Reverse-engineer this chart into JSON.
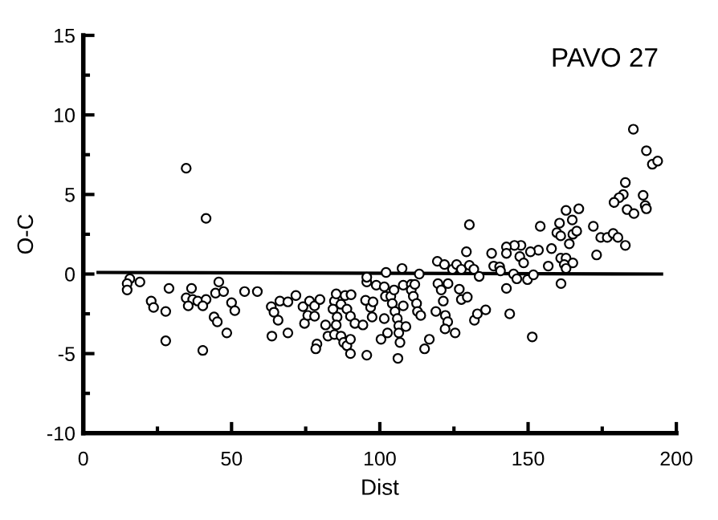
{
  "chart_data": {
    "type": "scatter",
    "title": "PAVO 27",
    "xlabel": "Dist",
    "ylabel": "O-C",
    "xlim": [
      0,
      200
    ],
    "ylim": [
      -10,
      15
    ],
    "xticks": [
      0,
      50,
      100,
      150,
      200
    ],
    "yticks": [
      -10,
      -5,
      0,
      5,
      10,
      15
    ],
    "grid": false,
    "legend": false,
    "series": [
      {
        "marker": "circle",
        "color": "#000000",
        "x": [
          34.7,
          41.4,
          15.7,
          14.8,
          14.8,
          19.1,
          28.9,
          22.9,
          23.7,
          27.8,
          27.8,
          36.5,
          34.7,
          36.9,
          35.4,
          38.6,
          41.4,
          40.3,
          40.3,
          44.1,
          45.2,
          45.7,
          44.6,
          47.3,
          48.4,
          50.0,
          51.1,
          54.4,
          58.7,
          63.4,
          64.3,
          65.7,
          63.6,
          69.0,
          66.3,
          69.0,
          71.7,
          74.1,
          74.6,
          76.3,
          75.7,
          78.0,
          78.0,
          79.8,
          78.8,
          78.4,
          81.7,
          82.5,
          84.7,
          85.3,
          84.2,
          85.6,
          85.3,
          84.7,
          86.9,
          87.8,
          88.9,
          90.1,
          90.1,
          86.9,
          88.3,
          90.3,
          88.9,
          90.1,
          91.6,
          94.3,
          95.6,
          95.2,
          95.6,
          95.6,
          96.9,
          97.4,
          97.7,
          98.8,
          101.5,
          102.1,
          101.5,
          100.4,
          102.6,
          101.9,
          103.7,
          104.8,
          104.2,
          105.1,
          105.9,
          106.4,
          106.4,
          106.8,
          106.1,
          107.5,
          107.9,
          107.9,
          108.8,
          110.6,
          110.6,
          111.8,
          111.3,
          112.4,
          112.7,
          113.8,
          113.3,
          116.7,
          115.1,
          119.4,
          119.6,
          118.9,
          121.8,
          120.7,
          121.4,
          122.1,
          122.9,
          122.0,
          125.4,
          124.5,
          125.9,
          123.0,
          126.8,
          127.5,
          129.5,
          127.5,
          130.2,
          129.2,
          130.2,
          131.7,
          131.9,
          132.9,
          185.5,
          189.9,
          191.9,
          193.7,
          182.8,
          182.1,
          180.7,
          179.0,
          188.8,
          189.5,
          189.9,
          183.4,
          185.7,
          172.0,
          174.5,
          176.7,
          178.7,
          180.3,
          182.8,
          173.1,
          162.8,
          167.1,
          164.9,
          160.6,
          154.1,
          159.7,
          161.0,
          165.1,
          166.4,
          163.9,
          157.9,
          153.5,
          150.8,
          147.6,
          145.4,
          142.7,
          142.7,
          137.7,
          147.2,
          148.5,
          138.4,
          140.4,
          140.7,
          145.1,
          146.2,
          149.8,
          151.8,
          156.8,
          161.0,
          162.8,
          162.2,
          165.1,
          162.8,
          161.1,
          142.7,
          133.5,
          135.7,
          143.8,
          151.4
        ],
        "values": [
          6.65,
          3.5,
          -0.3,
          -0.6,
          -1.0,
          -0.5,
          -0.9,
          -1.7,
          -2.1,
          -2.35,
          -4.2,
          -0.9,
          -1.5,
          -1.6,
          -2.0,
          -1.7,
          -1.6,
          -2.0,
          -4.8,
          -2.7,
          -3.0,
          -0.5,
          -1.2,
          -1.1,
          -3.7,
          -1.8,
          -2.3,
          -1.1,
          -1.1,
          -2.05,
          -2.4,
          -2.9,
          -3.9,
          -3.7,
          -1.7,
          -1.75,
          -1.35,
          -2.05,
          -3.1,
          -1.7,
          -2.6,
          -2.0,
          -2.65,
          -1.6,
          -4.4,
          -4.7,
          -3.2,
          -3.9,
          -1.7,
          -1.25,
          -2.2,
          -2.7,
          -3.2,
          -3.8,
          -3.9,
          -4.3,
          -4.5,
          -5.0,
          -4.1,
          -1.9,
          -1.35,
          -1.3,
          -2.2,
          -2.65,
          -3.1,
          -3.2,
          -5.1,
          -1.65,
          -0.5,
          -0.2,
          -2.1,
          -2.7,
          -1.75,
          -0.7,
          -0.8,
          0.1,
          -2.8,
          -4.1,
          -3.7,
          -1.4,
          -1.4,
          -1.0,
          -1.85,
          -2.35,
          -2.8,
          -3.25,
          -3.7,
          -4.3,
          -5.3,
          0.35,
          -0.7,
          -2.0,
          -3.3,
          -0.65,
          -1.0,
          -0.65,
          -1.4,
          -1.85,
          -2.35,
          -2.6,
          0.0,
          -4.1,
          -4.7,
          0.8,
          -0.6,
          -2.35,
          0.6,
          -1.0,
          -1.7,
          -2.6,
          -3.0,
          -3.45,
          -3.7,
          0.3,
          0.6,
          -0.6,
          -0.95,
          -1.6,
          -1.45,
          0.3,
          3.1,
          1.4,
          0.55,
          0.3,
          -2.9,
          -2.5,
          9.1,
          7.75,
          6.9,
          7.1,
          5.75,
          5.0,
          4.8,
          4.5,
          4.95,
          4.3,
          4.1,
          4.05,
          3.8,
          3.0,
          2.3,
          2.3,
          2.55,
          2.3,
          1.8,
          1.2,
          4.0,
          4.1,
          3.4,
          3.2,
          3.0,
          2.6,
          2.4,
          2.5,
          2.7,
          1.9,
          1.6,
          1.5,
          1.4,
          1.8,
          1.8,
          1.7,
          1.3,
          1.3,
          1.1,
          0.7,
          0.5,
          0.45,
          0.2,
          0.0,
          -0.3,
          -0.35,
          -0.05,
          0.5,
          1.0,
          1.0,
          0.6,
          0.7,
          0.35,
          -0.6,
          -0.9,
          -0.15,
          -2.25,
          -2.5,
          -3.95
        ]
      },
      {
        "type": "line",
        "marker": "none",
        "line_style": "solid",
        "color": "#000000",
        "x": [
          5,
          195
        ],
        "values": [
          0.1,
          0.0
        ]
      }
    ]
  }
}
